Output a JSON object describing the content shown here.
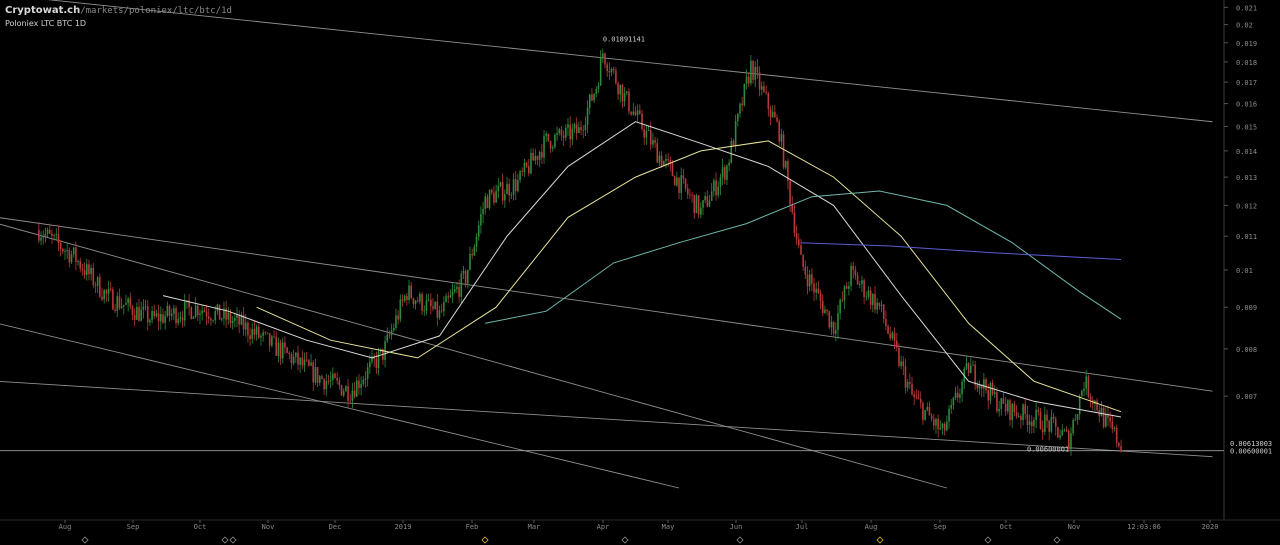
{
  "header": {
    "site": "Cryptowat.ch",
    "path": "/markets/poloniex/ltc/btc/1d",
    "subtitle": "Poloniex LTC BTC 1D"
  },
  "chart_data": {
    "type": "candlestick",
    "title": "Poloniex LTC BTC 1D",
    "y_scale": "log",
    "ylim": [
      0.0054,
      0.0212
    ],
    "grid": false,
    "yticks": [
      0.021,
      0.02,
      0.019,
      0.018,
      0.017,
      0.016,
      0.015,
      0.014,
      0.013,
      0.012,
      0.011,
      0.01,
      0.009,
      0.008,
      0.007
    ],
    "ytick_labels": [
      "0.021",
      "0.02",
      "0.019",
      "0.018",
      "0.017",
      "0.016",
      "0.015",
      "0.014",
      "0.013",
      "0.012",
      "0.011",
      "0.01",
      "0.009",
      "0.008",
      "0.007"
    ],
    "xtick_labels": [
      "Aug",
      "Sep",
      "Oct",
      "Nov",
      "Dec",
      "2019",
      "Feb",
      "Mar",
      "Apr",
      "May",
      "Jun",
      "Jul",
      "Aug",
      "Sep",
      "Oct",
      "Nov",
      "12:03:06",
      "2020"
    ],
    "annotations": [
      {
        "label": "0.01891141",
        "kind": "high",
        "value": 0.01891141
      },
      {
        "label": "0.00600001",
        "kind": "low",
        "value": 0.00600001
      }
    ],
    "price_labels": [
      {
        "label": "0.00613003",
        "kind": "last",
        "value": 0.00613003
      },
      {
        "label": "0.00600001",
        "kind": "horizontal-line",
        "value": 0.00600001
      }
    ],
    "trend": [
      [
        "2018-07-20",
        0.0112
      ],
      [
        "2018-08-05",
        0.0104
      ],
      [
        "2018-08-20",
        0.0093
      ],
      [
        "2018-09-10",
        0.0087
      ],
      [
        "2018-10-01",
        0.009
      ],
      [
        "2018-10-20",
        0.0086
      ],
      [
        "2018-11-10",
        0.0079
      ],
      [
        "2018-11-25",
        0.0074
      ],
      [
        "2018-12-10",
        0.0071
      ],
      [
        "2018-12-25",
        0.0079
      ],
      [
        "2019-01-05",
        0.0094
      ],
      [
        "2019-01-20",
        0.0088
      ],
      [
        "2019-02-01",
        0.0098
      ],
      [
        "2019-02-10",
        0.0122
      ],
      [
        "2019-02-25",
        0.0128
      ],
      [
        "2019-03-10",
        0.0144
      ],
      [
        "2019-03-25",
        0.0148
      ],
      [
        "2019-04-02",
        0.0168
      ],
      [
        "2019-04-05",
        0.0185
      ],
      [
        "2019-04-15",
        0.0163
      ],
      [
        "2019-05-01",
        0.0138
      ],
      [
        "2019-05-20",
        0.0118
      ],
      [
        "2019-06-01",
        0.0134
      ],
      [
        "2019-06-12",
        0.0178
      ],
      [
        "2019-06-25",
        0.0148
      ],
      [
        "2019-07-05",
        0.0102
      ],
      [
        "2019-07-20",
        0.0085
      ],
      [
        "2019-07-28",
        0.0099
      ],
      [
        "2019-08-10",
        0.009
      ],
      [
        "2019-08-25",
        0.007
      ],
      [
        "2019-09-08",
        0.0063
      ],
      [
        "2019-09-20",
        0.0076
      ],
      [
        "2019-10-05",
        0.0068
      ],
      [
        "2019-10-25",
        0.0065
      ],
      [
        "2019-11-05",
        0.0062
      ],
      [
        "2019-11-12",
        0.0073
      ],
      [
        "2019-11-22",
        0.0065
      ],
      [
        "2019-11-29",
        0.0061
      ]
    ],
    "moving_averages": [
      {
        "color": "#d8d8d8",
        "points": [
          [
            "2018-09-15",
            0.0093
          ],
          [
            "2018-10-15",
            0.0089
          ],
          [
            "2018-11-20",
            0.0082
          ],
          [
            "2018-12-20",
            0.0078
          ],
          [
            "2019-01-20",
            0.0083
          ],
          [
            "2019-02-20",
            0.011
          ],
          [
            "2019-03-20",
            0.0134
          ],
          [
            "2019-04-20",
            0.0152
          ],
          [
            "2019-05-20",
            0.0143
          ],
          [
            "2019-06-20",
            0.0134
          ],
          [
            "2019-07-20",
            0.012
          ],
          [
            "2019-08-20",
            0.0093
          ],
          [
            "2019-09-20",
            0.0073
          ],
          [
            "2019-10-20",
            0.0069
          ],
          [
            "2019-11-29",
            0.0066
          ]
        ]
      },
      {
        "color": "#e8e29a",
        "points": [
          [
            "2018-10-28",
            0.009
          ],
          [
            "2018-12-01",
            0.0082
          ],
          [
            "2019-01-10",
            0.0078
          ],
          [
            "2019-02-15",
            0.009
          ],
          [
            "2019-03-20",
            0.0116
          ],
          [
            "2019-04-20",
            0.013
          ],
          [
            "2019-05-20",
            0.014
          ],
          [
            "2019-06-20",
            0.0144
          ],
          [
            "2019-07-20",
            0.013
          ],
          [
            "2019-08-20",
            0.011
          ],
          [
            "2019-09-20",
            0.0086
          ],
          [
            "2019-10-20",
            0.0073
          ],
          [
            "2019-11-29",
            0.0067
          ]
        ]
      },
      {
        "color": "#6fb7ad",
        "points": [
          [
            "2019-02-10",
            0.0086
          ],
          [
            "2019-03-10",
            0.0089
          ],
          [
            "2019-04-10",
            0.0102
          ],
          [
            "2019-05-10",
            0.0108
          ],
          [
            "2019-06-10",
            0.0114
          ],
          [
            "2019-07-10",
            0.0123
          ],
          [
            "2019-08-10",
            0.0125
          ],
          [
            "2019-09-10",
            0.012
          ],
          [
            "2019-10-10",
            0.0108
          ],
          [
            "2019-11-10",
            0.0094
          ],
          [
            "2019-11-29",
            0.0087
          ]
        ]
      },
      {
        "color": "#5b5bd6",
        "points": [
          [
            "2019-07-05",
            0.0108
          ],
          [
            "2019-08-15",
            0.0107
          ],
          [
            "2019-10-01",
            0.0105
          ],
          [
            "2019-11-29",
            0.0103
          ]
        ]
      }
    ],
    "trendlines": [
      {
        "from": [
          "2018-02-01",
          0.024
        ],
        "to": [
          "2020-01-10",
          0.0152
        ]
      },
      {
        "from": [
          "2018-07-01",
          0.0116
        ],
        "to": [
          "2020-01-10",
          0.0071
        ]
      },
      {
        "from": [
          "2018-07-01",
          0.0114
        ],
        "to": [
          "2019-09-10",
          0.0054
        ]
      },
      {
        "from": [
          "2018-07-01",
          0.0086
        ],
        "to": [
          "2019-05-10",
          0.0054
        ]
      },
      {
        "from": [
          "2018-07-01",
          0.0073
        ],
        "to": [
          "2020-01-10",
          0.0059
        ]
      }
    ]
  }
}
